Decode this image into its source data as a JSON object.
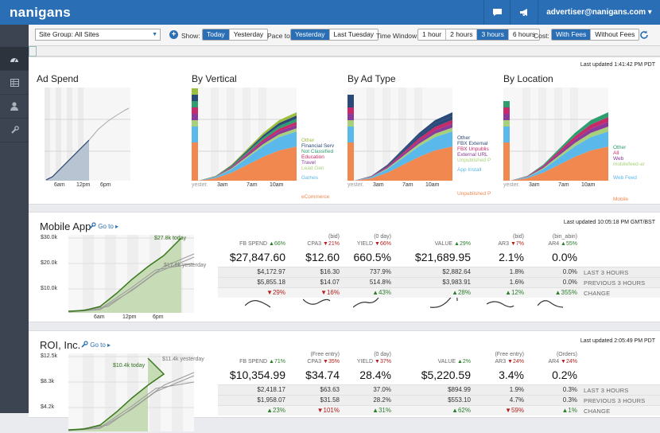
{
  "app": {
    "logo": "nanigans",
    "user": "advertiser@nanigans.com ▾"
  },
  "toolbar": {
    "site_group": "Site Group: All Sites",
    "show_label": "Show:",
    "show_opts": [
      "Today",
      "Yesterday"
    ],
    "pace_label": "Pace to:",
    "pace_opts": [
      "Yesterday",
      "Last Tuesday"
    ],
    "window_label": "Time Window:",
    "window_opts": [
      "1 hour",
      "2 hours",
      "3 hours",
      "6 hours"
    ],
    "cost_label": "Cost:",
    "cost_opts": [
      "With Fees",
      "Without Fees"
    ]
  },
  "overview": {
    "last_updated": "Last updated 1:41:42 PM PDT",
    "charts": [
      {
        "title": "Ad Spend",
        "ticks": [
          "6am",
          "12pm",
          "6pm"
        ],
        "series": []
      },
      {
        "title": "By Vertical",
        "ticks": [
          "yester.",
          "3am",
          "7am",
          "10am"
        ],
        "series": [
          {
            "name": "Other",
            "color": "#9cbf3b"
          },
          {
            "name": "Financial Serv",
            "color": "#2a4a7a"
          },
          {
            "name": "Not Classified",
            "color": "#2e9e6e"
          },
          {
            "name": "Education",
            "color": "#c62a6a"
          },
          {
            "name": "Travel",
            "color": "#8a3a9a"
          },
          {
            "name": "Lead Gen",
            "color": "#a8d07a"
          },
          {
            "name": "Games",
            "color": "#5ab8ea"
          },
          {
            "name": "eCommerce",
            "color": "#f08850"
          }
        ]
      },
      {
        "title": "By Ad Type",
        "ticks": [
          "yester.",
          "3am",
          "7am",
          "10am"
        ],
        "series": [
          {
            "name": "Other",
            "color": "#2a4a7a"
          },
          {
            "name": "FBX External",
            "color": "#2a4a7a"
          },
          {
            "name": "FBX Unpublis",
            "color": "#c62a6a"
          },
          {
            "name": "External URL",
            "color": "#8a3a9a"
          },
          {
            "name": "Unpublished P",
            "color": "#a8d07a"
          },
          {
            "name": "App Install",
            "color": "#5ab8ea"
          },
          {
            "name": "Unpublished P",
            "color": "#f08850"
          }
        ]
      },
      {
        "title": "By Location",
        "ticks": [
          "yester.",
          "3am",
          "7am",
          "10am"
        ],
        "series": [
          {
            "name": "Other",
            "color": "#2e9e6e"
          },
          {
            "name": "All",
            "color": "#c62a6a"
          },
          {
            "name": "Web",
            "color": "#8a3a9a"
          },
          {
            "name": "mobilefeed-ar",
            "color": "#a8d07a"
          },
          {
            "name": "Web Feed",
            "color": "#5ab8ea"
          },
          {
            "name": "Mobile",
            "color": "#f08850"
          }
        ]
      }
    ]
  },
  "dashboards": [
    {
      "title": "Mobile App",
      "goto": "Go to ▸",
      "last_updated": "Last updated 10:05:18 PM GMT/BST",
      "y_ticks": [
        "$30.0k",
        "$20.0k",
        "$10.0k"
      ],
      "x_ticks": [
        "6am",
        "12pm",
        "6pm"
      ],
      "today_label": "$27.8k today",
      "yesterday_label": "$17.6k yesterday",
      "metrics": [
        {
          "sub": "",
          "name": "FB SPEND",
          "chg": "▲66%",
          "dir": "up",
          "big": "$27,847.60",
          "r1": "$4,172.97",
          "r2": "$5,855.18",
          "change": "▼29%",
          "cdir": "dn"
        },
        {
          "sub": "(bid)",
          "name": "CPA3",
          "chg": "▼21%",
          "dir": "dn",
          "big": "$12.60",
          "r1": "$16.30",
          "r2": "$14.07",
          "change": "▼16%",
          "cdir": "dn"
        },
        {
          "sub": "(0 day)",
          "name": "YIELD",
          "chg": "▼66%",
          "dir": "dn",
          "big": "660.5%",
          "r1": "737.9%",
          "r2": "514.8%",
          "change": "▲43%",
          "cdir": "up"
        },
        {
          "sub": "",
          "name": "VALUE",
          "chg": "▲29%",
          "dir": "up",
          "big": "$21,689.95",
          "r1": "$2,882.64",
          "r2": "$3,983.91",
          "change": "▲28%",
          "cdir": "up"
        },
        {
          "sub": "(bid)",
          "name": "AR3",
          "chg": "▼7%",
          "dir": "dn",
          "big": "2.1%",
          "r1": "1.8%",
          "r2": "1.6%",
          "change": "▲12%",
          "cdir": "up"
        },
        {
          "sub": "(bin_abin)",
          "name": "AR4",
          "chg": "▲55%",
          "dir": "up",
          "big": "0.0%",
          "r1": "0.0%",
          "r2": "0.0%",
          "change": "▲355%",
          "cdir": "up"
        }
      ],
      "row_labels": [
        "LAST 3 HOURS",
        "PREVIOUS 3 HOURS",
        "CHANGE"
      ]
    },
    {
      "title": "ROI, Inc.",
      "goto": "Go to ▸",
      "last_updated": "Last updated 2:05:49 PM PDT",
      "y_ticks": [
        "$12.5k",
        "$8.3k",
        "$4.2k"
      ],
      "x_ticks": [],
      "today_label": "$10.4k today",
      "yesterday_label": "$11.4k yesterday",
      "metrics": [
        {
          "sub": "",
          "name": "FB SPEND",
          "chg": "▲71%",
          "dir": "up",
          "big": "$10,354.99",
          "r1": "$2,418.17",
          "r2": "$1,958.07",
          "change": "▲23%",
          "cdir": "up"
        },
        {
          "sub": "(Free entry)",
          "name": "CPA3",
          "chg": "▼35%",
          "dir": "dn",
          "big": "$34.74",
          "r1": "$63.63",
          "r2": "$31.58",
          "change": "▼101%",
          "cdir": "dn"
        },
        {
          "sub": "(0 day)",
          "name": "YIELD",
          "chg": "▼37%",
          "dir": "dn",
          "big": "28.4%",
          "r1": "37.0%",
          "r2": "28.2%",
          "change": "▲31%",
          "cdir": "up"
        },
        {
          "sub": "",
          "name": "VALUE",
          "chg": "▲2%",
          "dir": "up",
          "big": "$5,220.59",
          "r1": "$894.99",
          "r2": "$553.10",
          "change": "▲62%",
          "cdir": "up"
        },
        {
          "sub": "(Free entry)",
          "name": "AR3",
          "chg": "▼24%",
          "dir": "dn",
          "big": "3.4%",
          "r1": "1.9%",
          "r2": "4.7%",
          "change": "▼59%",
          "cdir": "dn"
        },
        {
          "sub": "(Orders)",
          "name": "AR4",
          "chg": "▼24%",
          "dir": "dn",
          "big": "0.2%",
          "r1": "0.3%",
          "r2": "0.3%",
          "change": "▲1%",
          "cdir": "up"
        }
      ],
      "row_labels": [
        "LAST 3 HOURS",
        "PREVIOUS 3 HOURS",
        "CHANGE"
      ]
    }
  ]
}
